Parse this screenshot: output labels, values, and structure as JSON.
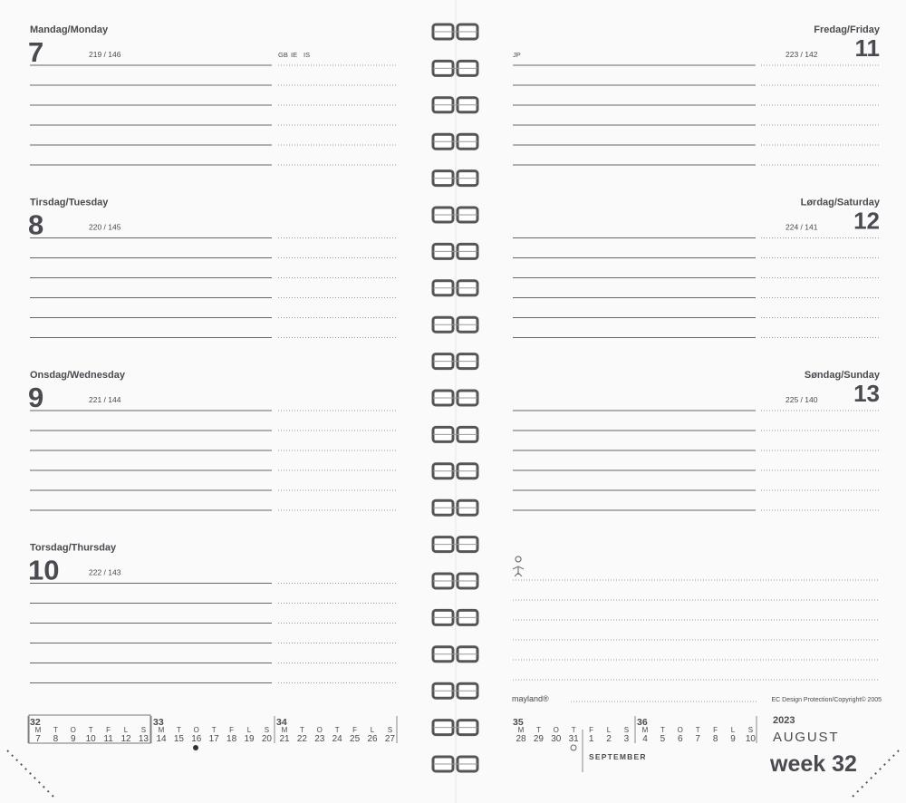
{
  "left_page": {
    "days": [
      {
        "name": "Mandag/Monday",
        "date": 7,
        "day_count": "219 / 146",
        "holidays": [
          "GB",
          "IE",
          "IS"
        ]
      },
      {
        "name": "Tirsdag/Tuesday",
        "date": 8,
        "day_count": "220 / 145",
        "holidays": []
      },
      {
        "name": "Onsdag/Wednesday",
        "date": 9,
        "day_count": "221 / 144",
        "holidays": []
      },
      {
        "name": "Torsdag/Thursday",
        "date": 10,
        "day_count": "222 / 143",
        "holidays": []
      }
    ]
  },
  "right_page": {
    "days": [
      {
        "name": "Fredag/Friday",
        "date": 11,
        "day_count": "223 / 142",
        "holidays": [
          "JP"
        ]
      },
      {
        "name": "Lørdag/Saturday",
        "date": 12,
        "day_count": "224 / 141",
        "holidays": []
      },
      {
        "name": "Søndag/Sunday",
        "date": 13,
        "day_count": "225 / 140",
        "holidays": []
      }
    ],
    "brand": "mayland®",
    "copyright": "EC Design Protection/Copyright© 2005"
  },
  "mini_calendar": {
    "weekdays": [
      "M",
      "T",
      "O",
      "T",
      "F",
      "L",
      "S"
    ],
    "weeks": [
      {
        "number": 32,
        "dates": [
          7,
          8,
          9,
          10,
          11,
          12,
          13
        ]
      },
      {
        "number": 33,
        "dates": [
          14,
          15,
          16,
          17,
          18,
          19,
          20
        ]
      },
      {
        "number": 34,
        "dates": [
          21,
          22,
          23,
          24,
          25,
          26,
          27
        ]
      },
      {
        "number": 35,
        "dates": [
          28,
          29,
          30,
          31,
          1,
          2,
          3
        ]
      },
      {
        "number": 36,
        "dates": [
          4,
          5,
          6,
          7,
          8,
          9,
          10
        ]
      }
    ],
    "next_month": "SEPTEMBER"
  },
  "footer": {
    "year": "2023",
    "month": "AUGUST",
    "week_label": "week 32"
  }
}
